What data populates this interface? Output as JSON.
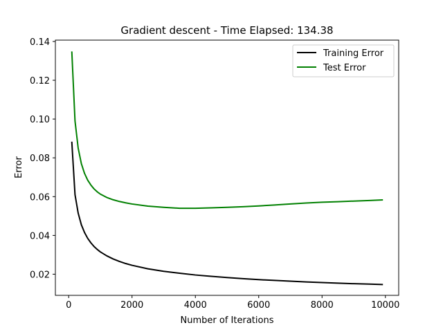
{
  "chart_data": {
    "type": "line",
    "title": "Gradient descent - Time Elapsed: 134.38",
    "xlabel": "Number of Iterations",
    "ylabel": "Error",
    "xlim": [
      -420,
      10420
    ],
    "ylim": [
      0.0091,
      0.1407
    ],
    "xticks": [
      0,
      2000,
      4000,
      6000,
      8000,
      10000
    ],
    "xtick_labels": [
      "0",
      "2000",
      "4000",
      "6000",
      "8000",
      "10000"
    ],
    "yticks": [
      0.02,
      0.04,
      0.06,
      0.08,
      0.1,
      0.12,
      0.14
    ],
    "ytick_labels": [
      "0.02",
      "0.04",
      "0.06",
      "0.08",
      "0.10",
      "0.12",
      "0.14"
    ],
    "grid": false,
    "legend_position": "top-right",
    "x": [
      100,
      200,
      300,
      400,
      500,
      600,
      700,
      800,
      900,
      1000,
      1200,
      1400,
      1600,
      1800,
      2000,
      2500,
      3000,
      3500,
      4000,
      4500,
      5000,
      5500,
      6000,
      6500,
      7000,
      7500,
      8000,
      8500,
      9000,
      9500,
      9900
    ],
    "series": [
      {
        "name": "Training Error",
        "color": "#000000",
        "values": [
          0.088,
          0.061,
          0.0515,
          0.0455,
          0.0415,
          0.0385,
          0.0362,
          0.0343,
          0.0328,
          0.0315,
          0.0295,
          0.0279,
          0.0266,
          0.0255,
          0.0246,
          0.0228,
          0.0215,
          0.0205,
          0.0196,
          0.0189,
          0.0183,
          0.0177,
          0.0172,
          0.0168,
          0.0164,
          0.016,
          0.0157,
          0.0154,
          0.0151,
          0.0149,
          0.0147
        ]
      },
      {
        "name": "Test Error",
        "color": "#008000",
        "values": [
          0.1345,
          0.099,
          0.085,
          0.077,
          0.072,
          0.0685,
          0.066,
          0.064,
          0.0625,
          0.0613,
          0.0596,
          0.0584,
          0.0575,
          0.0568,
          0.0562,
          0.0551,
          0.0545,
          0.054,
          0.054,
          0.0542,
          0.0545,
          0.0548,
          0.0552,
          0.0557,
          0.0562,
          0.0567,
          0.0571,
          0.0574,
          0.0577,
          0.058,
          0.0583
        ]
      }
    ]
  }
}
